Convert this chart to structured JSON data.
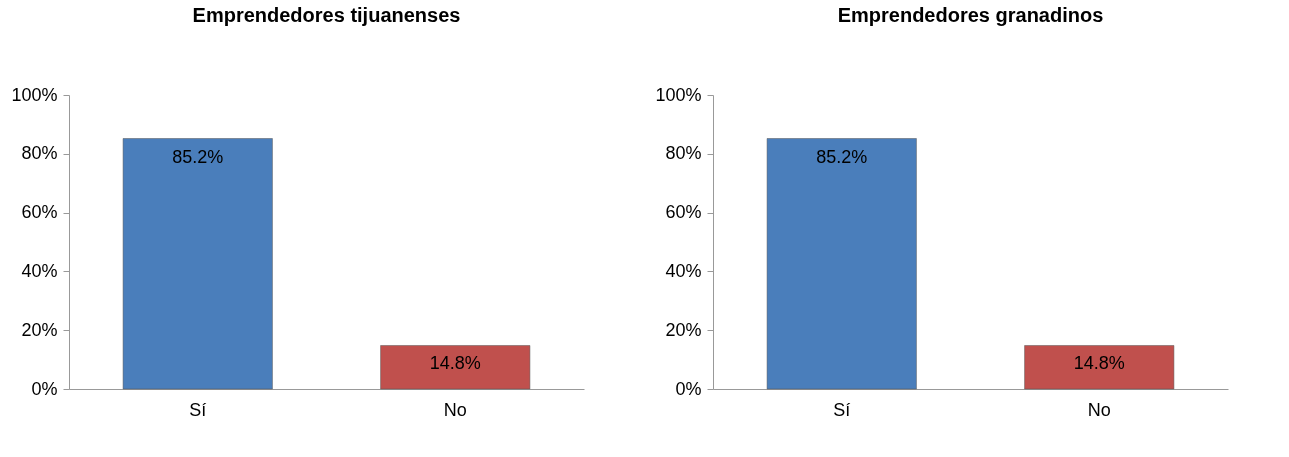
{
  "chart_data": [
    {
      "type": "bar",
      "title": "Emprendedores tijuanenses",
      "categories": [
        "Sí",
        "No"
      ],
      "values": [
        85.2,
        14.8
      ],
      "colors": [
        "#4a7ebb",
        "#c0504d"
      ],
      "value_labels": [
        "85.2%",
        "14.8%"
      ],
      "ylim": [
        0,
        100
      ],
      "yticks": [
        {
          "value": 0,
          "label": "0%"
        },
        {
          "value": 20,
          "label": "20%"
        },
        {
          "value": 40,
          "label": "40%"
        },
        {
          "value": 60,
          "label": "60%"
        },
        {
          "value": 80,
          "label": "80%"
        },
        {
          "value": 100,
          "label": "100%"
        }
      ]
    },
    {
      "type": "bar",
      "title": "Emprendedores granadinos",
      "categories": [
        "Sí",
        "No"
      ],
      "values": [
        85.2,
        14.8
      ],
      "colors": [
        "#4a7ebb",
        "#c0504d"
      ],
      "value_labels": [
        "85.2%",
        "14.8%"
      ],
      "ylim": [
        0,
        100
      ],
      "yticks": [
        {
          "value": 0,
          "label": "0%"
        },
        {
          "value": 20,
          "label": "20%"
        },
        {
          "value": 40,
          "label": "40%"
        },
        {
          "value": 60,
          "label": "60%"
        },
        {
          "value": 80,
          "label": "80%"
        },
        {
          "value": 100,
          "label": "100%"
        }
      ]
    }
  ]
}
